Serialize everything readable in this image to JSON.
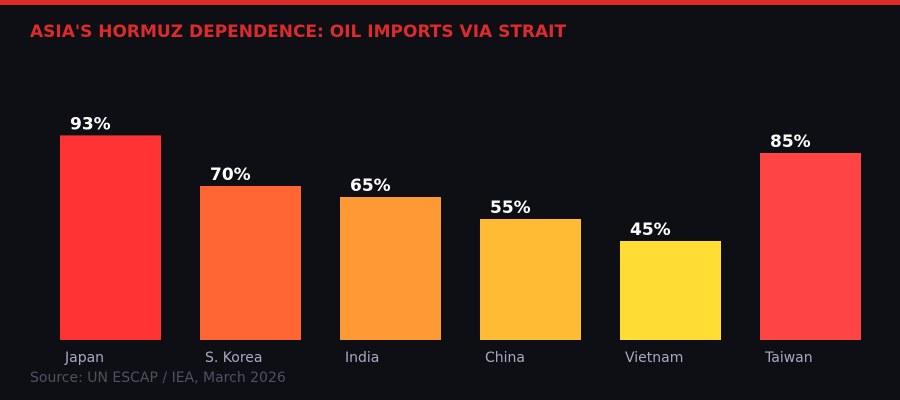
{
  "colors": {
    "accent": "#dd2a2a",
    "background": "#0e0f14",
    "label": "#a8a8c4",
    "source": "#50505f",
    "value_label": "#ffffff"
  },
  "chart_data": {
    "type": "bar",
    "title": "ASIA'S HORMUZ DEPENDENCE: OIL IMPORTS VIA STRAIT",
    "categories": [
      "Japan",
      "S. Korea",
      "India",
      "China",
      "Vietnam",
      "Taiwan"
    ],
    "values": [
      93,
      70,
      65,
      55,
      45,
      85
    ],
    "data_labels": [
      "93%",
      "70%",
      "65%",
      "55%",
      "45%",
      "85%"
    ],
    "bar_colors": [
      "#ff3333",
      "#ff6633",
      "#ff9933",
      "#ffbb33",
      "#ffdd33",
      "#ff4444"
    ],
    "xlabel": "",
    "ylabel": "",
    "ylim": [
      0,
      100
    ],
    "grid": false,
    "legend": "none",
    "source": "Source: UN ESCAP / IEA, March 2026"
  }
}
